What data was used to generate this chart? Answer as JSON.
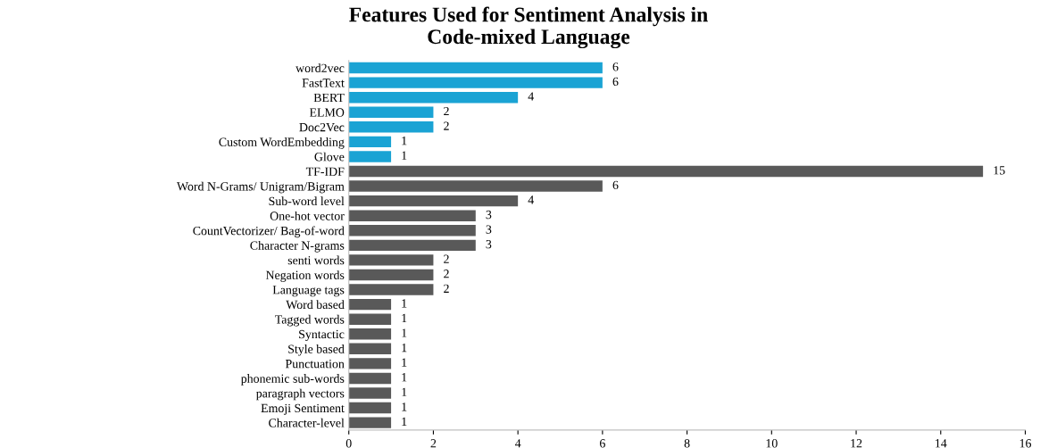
{
  "chart_data": {
    "type": "bar",
    "orientation": "horizontal",
    "title": "Features Used for Sentiment Analysis in\nCode-mixed Language",
    "categories": [
      "word2vec",
      "FastText",
      "BERT",
      "ELMO",
      "Doc2Vec",
      "Custom WordEmbedding",
      "Glove",
      "TF-IDF",
      "Word N-Grams/ Unigram/Bigram",
      "Sub-word level",
      "One-hot vector",
      "CountVectorizer/ Bag-of-word",
      "Character N-grams",
      "senti words",
      "Negation words",
      "Language tags",
      "Word based",
      "Tagged words",
      "Syntactic",
      "Style based",
      "Punctuation",
      "phonemic sub-words",
      "paragraph vectors",
      "Emoji Sentiment",
      "Character-level"
    ],
    "values": [
      6,
      6,
      4,
      2,
      2,
      1,
      1,
      15,
      6,
      4,
      3,
      3,
      3,
      2,
      2,
      2,
      1,
      1,
      1,
      1,
      1,
      1,
      1,
      1,
      1
    ],
    "colors": [
      "#1aa3d4",
      "#1aa3d4",
      "#1aa3d4",
      "#1aa3d4",
      "#1aa3d4",
      "#1aa3d4",
      "#1aa3d4",
      "#595959",
      "#595959",
      "#595959",
      "#595959",
      "#595959",
      "#595959",
      "#595959",
      "#595959",
      "#595959",
      "#595959",
      "#595959",
      "#595959",
      "#595959",
      "#595959",
      "#595959",
      "#595959",
      "#595959",
      "#595959"
    ],
    "xlim": [
      0,
      16
    ],
    "xticks": [
      0,
      2,
      4,
      6,
      8,
      10,
      12,
      14,
      16
    ],
    "data_labels": true,
    "grid": false,
    "legend": false
  }
}
